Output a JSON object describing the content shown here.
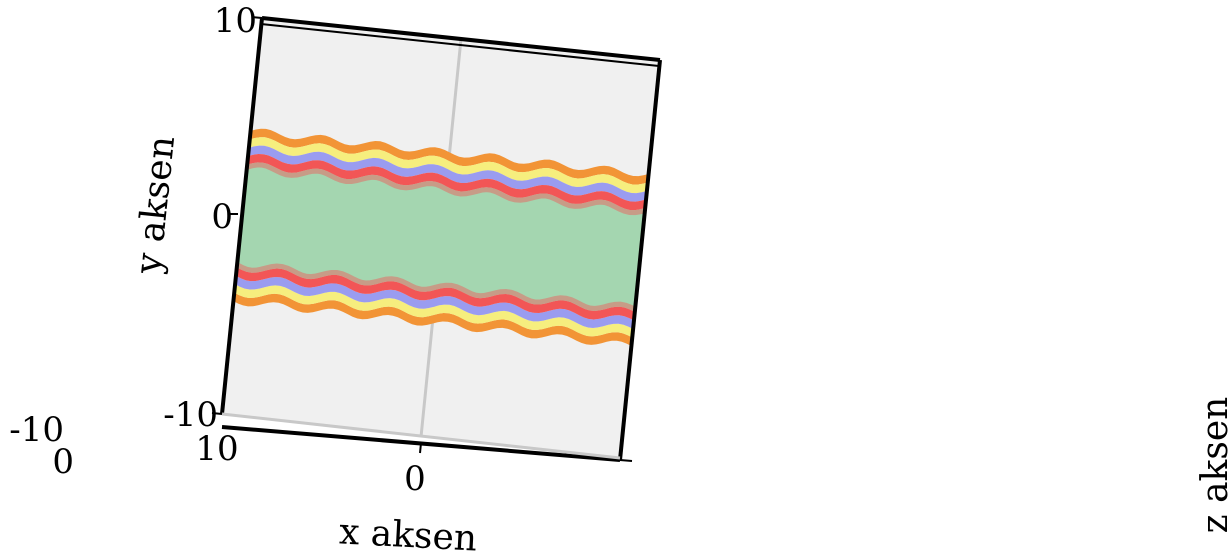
{
  "chart_data": {
    "type": "surface",
    "view": "3d-top-rotated",
    "xlabel": "x aksen",
    "ylabel": "y aksen",
    "zlabel": "z aksen",
    "xticks": [
      "10",
      "0"
    ],
    "yticks": [
      "10",
      "0",
      "-10"
    ],
    "zticks": [
      "-10",
      "0"
    ],
    "xlim": [
      -10,
      10
    ],
    "ylim": [
      -10,
      10
    ],
    "grid": true,
    "band": {
      "y_center": 0,
      "green_half_width": 2.6,
      "outer_half_width": 4.3,
      "ripple_count": 7
    },
    "colors": {
      "background": "#f0f0f0",
      "grid": "#c8c8c8",
      "center": "#a4d6b0",
      "red": "#f25656",
      "blue": "#9a9cf0",
      "yellow": "#f6ee7e",
      "orange": "#f29436"
    }
  }
}
